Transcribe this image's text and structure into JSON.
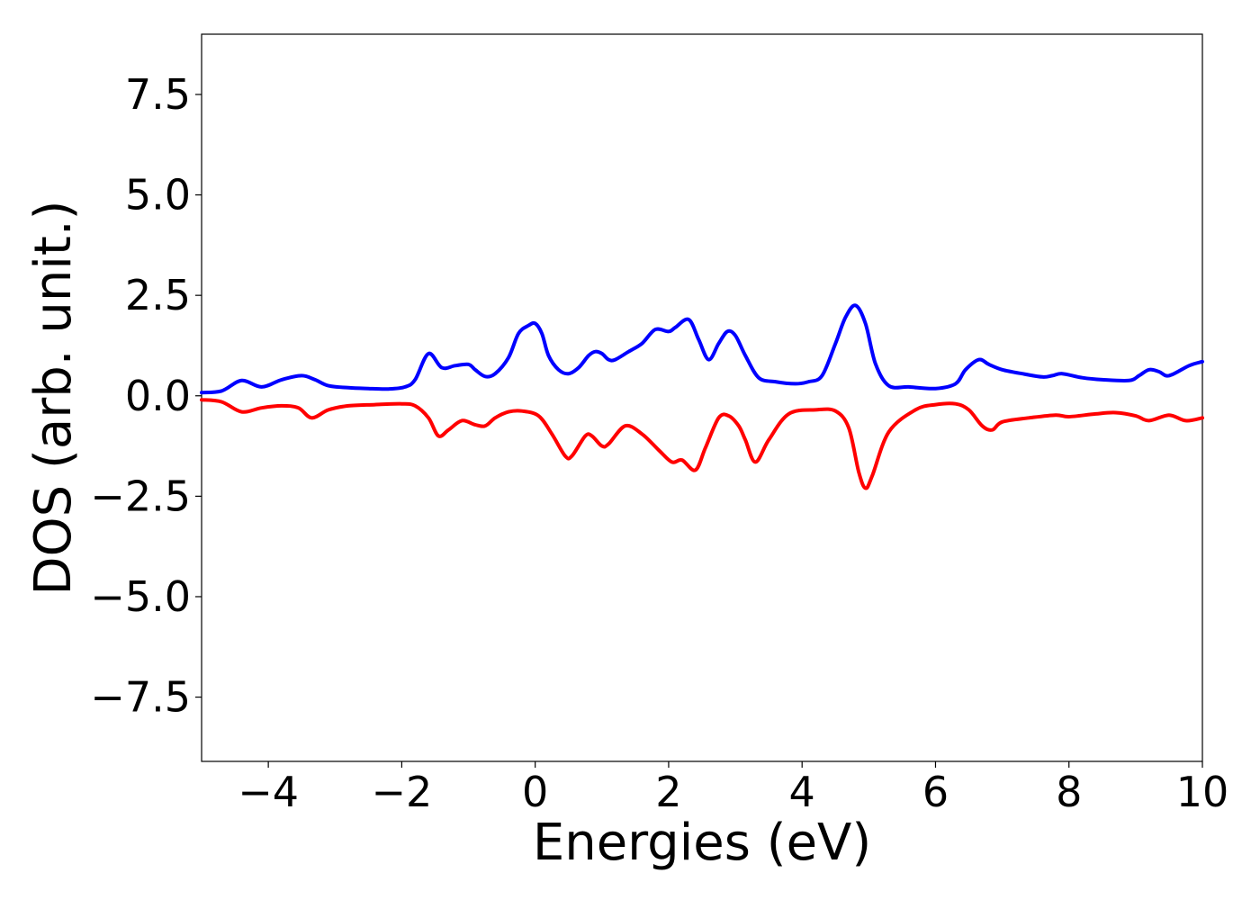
{
  "chart_data": {
    "type": "line",
    "xlabel": "Energies (eV)",
    "ylabel": "DOS (arb. unit.)",
    "xlim": [
      -5,
      10
    ],
    "ylim": [
      -9.1,
      9.0
    ],
    "xticks": [
      -4,
      -2,
      0,
      2,
      4,
      6,
      8,
      10
    ],
    "xtick_labels": [
      "−4",
      "−2",
      "0",
      "2",
      "4",
      "6",
      "8",
      "10"
    ],
    "yticks": [
      7.5,
      5.0,
      2.5,
      0.0,
      -2.5,
      -5.0,
      -7.5
    ],
    "ytick_labels": [
      "7.5",
      "5.0",
      "2.5",
      "0.0",
      "−2.5",
      "−5.0",
      "−7.5"
    ],
    "grid": false,
    "series": [
      {
        "color": "#0000ff",
        "x": [
          -5.0,
          -4.7,
          -4.4,
          -4.1,
          -3.8,
          -3.5,
          -3.3,
          -3.1,
          -2.8,
          -2.5,
          -2.2,
          -1.95,
          -1.8,
          -1.6,
          -1.4,
          -1.2,
          -1.0,
          -0.9,
          -0.75,
          -0.6,
          -0.4,
          -0.25,
          -0.1,
          0.0,
          0.1,
          0.2,
          0.35,
          0.5,
          0.65,
          0.8,
          0.9,
          1.0,
          1.1,
          1.2,
          1.4,
          1.6,
          1.8,
          2.0,
          2.1,
          2.3,
          2.45,
          2.6,
          2.75,
          2.88,
          3.0,
          3.15,
          3.35,
          3.6,
          3.9,
          4.1,
          4.3,
          4.5,
          4.65,
          4.8,
          4.95,
          5.1,
          5.3,
          5.6,
          6.0,
          6.3,
          6.45,
          6.65,
          6.8,
          7.0,
          7.3,
          7.6,
          7.75,
          7.9,
          8.2,
          8.5,
          8.9,
          9.05,
          9.2,
          9.35,
          9.5,
          9.8,
          10.0
        ],
        "y": [
          0.08,
          0.12,
          0.38,
          0.22,
          0.4,
          0.5,
          0.4,
          0.25,
          0.2,
          0.18,
          0.17,
          0.22,
          0.4,
          1.05,
          0.7,
          0.75,
          0.78,
          0.65,
          0.48,
          0.55,
          0.95,
          1.55,
          1.75,
          1.8,
          1.55,
          1.0,
          0.65,
          0.55,
          0.7,
          1.0,
          1.1,
          1.05,
          0.9,
          0.9,
          1.1,
          1.3,
          1.65,
          1.6,
          1.7,
          1.9,
          1.4,
          0.9,
          1.3,
          1.6,
          1.5,
          1.0,
          0.45,
          0.35,
          0.3,
          0.35,
          0.5,
          1.3,
          1.95,
          2.25,
          1.8,
          0.8,
          0.25,
          0.22,
          0.18,
          0.3,
          0.65,
          0.9,
          0.78,
          0.65,
          0.55,
          0.47,
          0.5,
          0.55,
          0.45,
          0.4,
          0.38,
          0.5,
          0.65,
          0.6,
          0.5,
          0.75,
          0.85
        ]
      },
      {
        "color": "#ff0000",
        "x": [
          -5.0,
          -4.7,
          -4.4,
          -4.1,
          -3.8,
          -3.55,
          -3.35,
          -3.1,
          -2.8,
          -2.4,
          -2.0,
          -1.8,
          -1.6,
          -1.45,
          -1.3,
          -1.1,
          -0.9,
          -0.75,
          -0.6,
          -0.4,
          -0.2,
          0.05,
          0.25,
          0.45,
          0.55,
          0.75,
          0.85,
          1.0,
          1.1,
          1.35,
          1.6,
          1.85,
          2.05,
          2.2,
          2.4,
          2.55,
          2.75,
          2.9,
          3.05,
          3.15,
          3.3,
          3.5,
          3.8,
          4.2,
          4.5,
          4.7,
          4.85,
          4.95,
          5.05,
          5.3,
          5.7,
          6.0,
          6.3,
          6.5,
          6.7,
          6.85,
          7.0,
          7.4,
          7.8,
          8.0,
          8.4,
          8.7,
          9.0,
          9.2,
          9.5,
          9.75,
          10.0
        ],
        "y": [
          -0.1,
          -0.15,
          -0.4,
          -0.3,
          -0.25,
          -0.3,
          -0.55,
          -0.35,
          -0.25,
          -0.22,
          -0.2,
          -0.25,
          -0.55,
          -1.0,
          -0.85,
          -0.62,
          -0.72,
          -0.75,
          -0.55,
          -0.4,
          -0.38,
          -0.5,
          -0.95,
          -1.5,
          -1.5,
          -1.0,
          -1.0,
          -1.25,
          -1.2,
          -0.75,
          -0.95,
          -1.35,
          -1.65,
          -1.6,
          -1.85,
          -1.3,
          -0.55,
          -0.5,
          -0.75,
          -1.1,
          -1.65,
          -1.1,
          -0.45,
          -0.35,
          -0.38,
          -0.8,
          -1.9,
          -2.3,
          -2.0,
          -0.9,
          -0.35,
          -0.22,
          -0.2,
          -0.35,
          -0.75,
          -0.85,
          -0.65,
          -0.55,
          -0.48,
          -0.52,
          -0.45,
          -0.42,
          -0.5,
          -0.62,
          -0.48,
          -0.62,
          -0.55
        ]
      }
    ]
  }
}
